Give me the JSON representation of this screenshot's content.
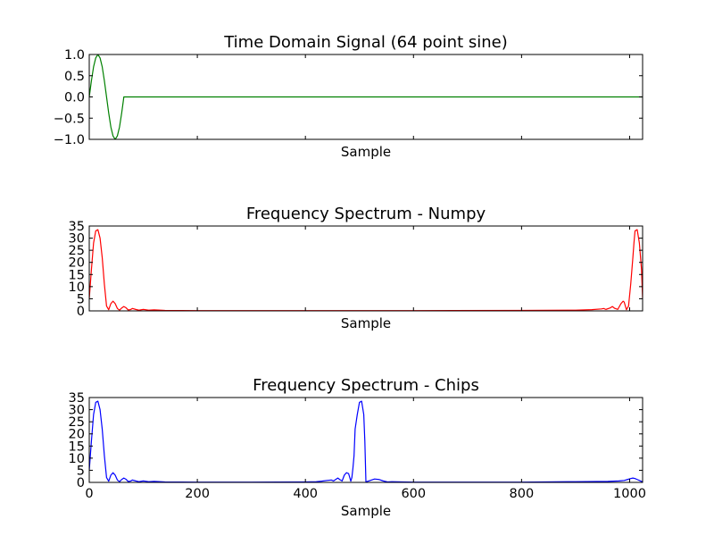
{
  "chart_data": [
    {
      "type": "line",
      "title": "Time Domain Signal (64 point sine)",
      "xlabel": "Sample",
      "ylabel": "",
      "xlim": [
        0,
        1024
      ],
      "ylim": [
        -1.0,
        1.0
      ],
      "x_tick_values": [
        200,
        400,
        600,
        800,
        1000
      ],
      "x_tick_labels": [],
      "y_tick_values": [
        -1.0,
        -0.5,
        0.0,
        0.5,
        1.0
      ],
      "y_tick_labels": [
        "−1.0",
        "−0.5",
        "0.0",
        "0.5",
        "1.0"
      ],
      "grid": false,
      "series": [
        {
          "color": "#008000",
          "x": [
            0,
            4,
            8,
            12,
            16,
            20,
            24,
            28,
            32,
            36,
            40,
            44,
            48,
            52,
            56,
            60,
            63,
            64,
            1024
          ],
          "y": [
            0.0,
            0.38,
            0.71,
            0.92,
            1.0,
            0.92,
            0.71,
            0.38,
            0.0,
            -0.38,
            -0.71,
            -0.92,
            -1.0,
            -0.92,
            -0.71,
            -0.38,
            -0.1,
            0.0,
            0.0
          ]
        }
      ]
    },
    {
      "type": "line",
      "title": "Frequency Spectrum - Numpy",
      "xlabel": "Sample",
      "ylabel": "",
      "xlim": [
        0,
        1024
      ],
      "ylim": [
        0,
        35
      ],
      "x_tick_values": [
        200,
        400,
        600,
        800,
        1000
      ],
      "x_tick_labels": [],
      "y_tick_values": [
        0,
        5,
        10,
        15,
        20,
        25,
        30,
        35
      ],
      "y_tick_labels": [
        "0",
        "5",
        "10",
        "15",
        "20",
        "25",
        "30",
        "35"
      ],
      "grid": false,
      "series": [
        {
          "color": "#ff0000",
          "x": [
            0,
            4,
            8,
            12,
            16,
            20,
            24,
            28,
            32,
            36,
            40,
            44,
            48,
            52,
            56,
            60,
            64,
            68,
            72,
            76,
            80,
            86,
            92,
            100,
            110,
            120,
            140,
            200,
            400,
            600,
            800,
            900,
            930,
            948,
            952,
            956,
            964,
            968,
            972,
            978,
            984,
            988,
            990,
            994,
            998,
            1002,
            1006,
            1008,
            1010,
            1014,
            1018,
            1022,
            1024
          ],
          "y": [
            5,
            17,
            28,
            33,
            33.5,
            30,
            22,
            11,
            2,
            0.5,
            3,
            4,
            3,
            1,
            0.3,
            1.2,
            1.8,
            1.3,
            0.4,
            0.5,
            1.0,
            0.6,
            0.3,
            0.6,
            0.3,
            0.4,
            0.2,
            0.1,
            0.1,
            0.1,
            0.2,
            0.3,
            0.5,
            0.8,
            1.0,
            0.6,
            1.2,
            1.8,
            1.1,
            0.6,
            3,
            4,
            3.6,
            0.5,
            2,
            11,
            22,
            28,
            33,
            33.5,
            28,
            17,
            5
          ]
        }
      ]
    },
    {
      "type": "line",
      "title": "Frequency Spectrum - Chips",
      "xlabel": "Sample",
      "ylabel": "",
      "xlim": [
        0,
        1024
      ],
      "ylim": [
        0,
        35
      ],
      "x_tick_values": [
        0,
        200,
        400,
        600,
        800,
        1000
      ],
      "x_tick_labels": [
        "0",
        "200",
        "400",
        "600",
        "800",
        "1000"
      ],
      "y_tick_values": [
        0,
        5,
        10,
        15,
        20,
        25,
        30,
        35
      ],
      "y_tick_labels": [
        "0",
        "5",
        "10",
        "15",
        "20",
        "25",
        "30",
        "35"
      ],
      "grid": false,
      "series": [
        {
          "color": "#0000ff",
          "x": [
            0,
            4,
            8,
            12,
            16,
            20,
            24,
            28,
            32,
            36,
            40,
            44,
            48,
            52,
            56,
            60,
            64,
            68,
            72,
            76,
            80,
            86,
            92,
            100,
            110,
            120,
            140,
            200,
            300,
            400,
            420,
            430,
            440,
            448,
            452,
            456,
            460,
            464,
            468,
            472,
            476,
            480,
            484,
            486,
            488,
            490,
            492,
            496,
            500,
            504,
            508,
            510,
            512,
            520,
            528,
            536,
            544,
            552,
            560,
            600,
            700,
            800,
            900,
            960,
            980,
            990,
            996,
            1002,
            1006,
            1010,
            1014,
            1018,
            1022,
            1024
          ],
          "y": [
            5,
            17,
            28,
            33,
            33.5,
            30,
            22,
            11,
            2,
            0.5,
            3,
            4,
            3,
            1,
            0.3,
            1.2,
            1.8,
            1.3,
            0.4,
            0.5,
            1.0,
            0.6,
            0.3,
            0.6,
            0.3,
            0.4,
            0.2,
            0.1,
            0.1,
            0.2,
            0.3,
            0.5,
            0.8,
            1.0,
            0.6,
            1.2,
            1.8,
            1.1,
            0.6,
            3,
            4,
            3.6,
            0.5,
            2,
            6,
            11,
            22,
            28,
            33,
            33.5,
            28,
            17,
            0.2,
            0.8,
            1.4,
            1.2,
            0.6,
            0.2,
            0.3,
            0.1,
            0.1,
            0.1,
            0.3,
            0.4,
            0.6,
            0.8,
            1.2,
            1.6,
            1.8,
            1.6,
            1.2,
            0.8,
            0.4,
            0.2
          ]
        }
      ]
    }
  ]
}
